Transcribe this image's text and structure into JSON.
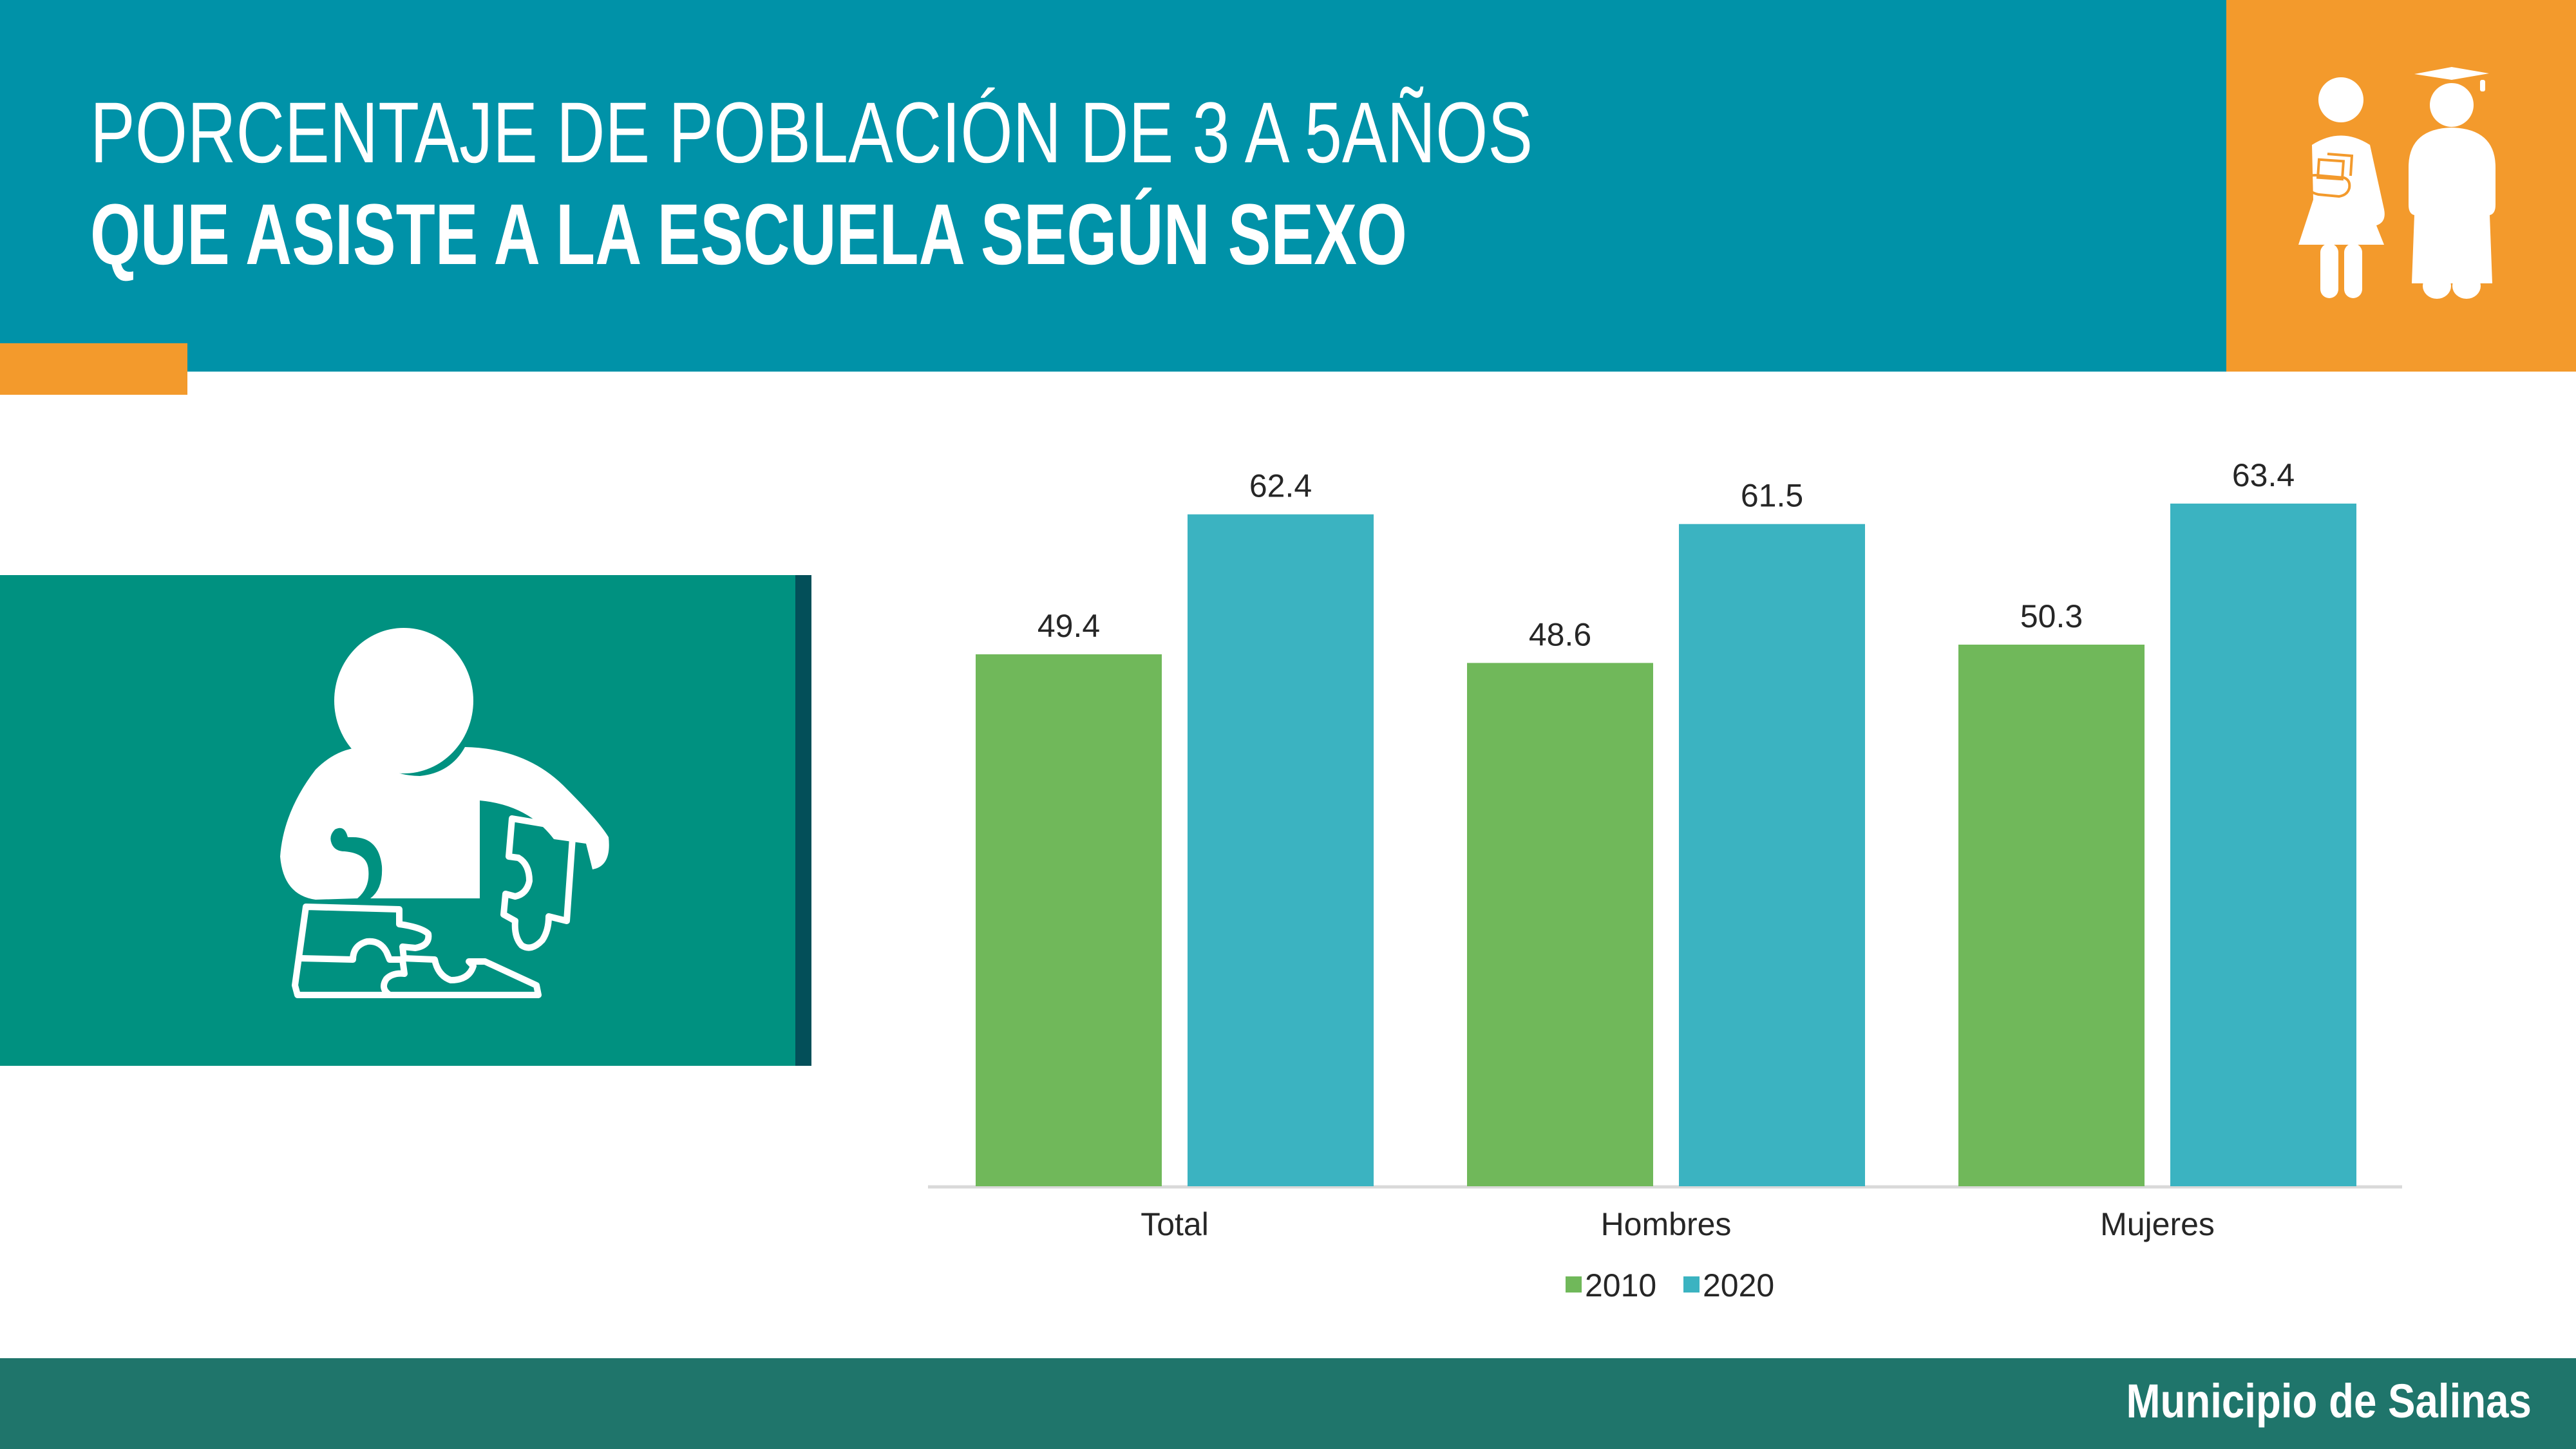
{
  "header": {
    "title_line_1": "PORCENTAJE DE POBLACIÓN DE 3 A 5AÑOS",
    "title_line_2": "QUE ASISTE A LA ESCUELA SEGÚN SEXO",
    "icon": "students-graduate-icon"
  },
  "side_panel": {
    "icon": "child-puzzle-icon"
  },
  "footer": {
    "text": "Municipio de Salinas"
  },
  "colors": {
    "header_bg": "#0092a8",
    "accent_orange": "#f39a2c",
    "side_panel_bg": "#009180",
    "side_panel_edge": "#034f59",
    "footer_bg": "#1f756b",
    "series_2010": "#70b85a",
    "series_2020": "#3bb3c1",
    "label_text": "#262626",
    "axis_line": "#d9d9d9"
  },
  "chart_data": {
    "type": "bar",
    "title": "PORCENTAJE DE POBLACIÓN DE 3 A 5AÑOS QUE ASISTE A LA ESCUELA SEGÚN SEXO",
    "categories": [
      "Total",
      "Hombres",
      "Mujeres"
    ],
    "series": [
      {
        "name": "2010",
        "color": "#70b85a",
        "values": [
          49.4,
          48.6,
          50.3
        ]
      },
      {
        "name": "2020",
        "color": "#3bb3c1",
        "values": [
          62.4,
          61.5,
          63.4
        ]
      }
    ],
    "data_labels": [
      [
        "49.4",
        "48.6",
        "50.3"
      ],
      [
        "62.4",
        "61.5",
        "63.4"
      ]
    ],
    "xlabel": "",
    "ylabel": "",
    "ylim": [
      0,
      70
    ],
    "y_axis_visible": false,
    "grid": false,
    "legend_position": "bottom"
  }
}
